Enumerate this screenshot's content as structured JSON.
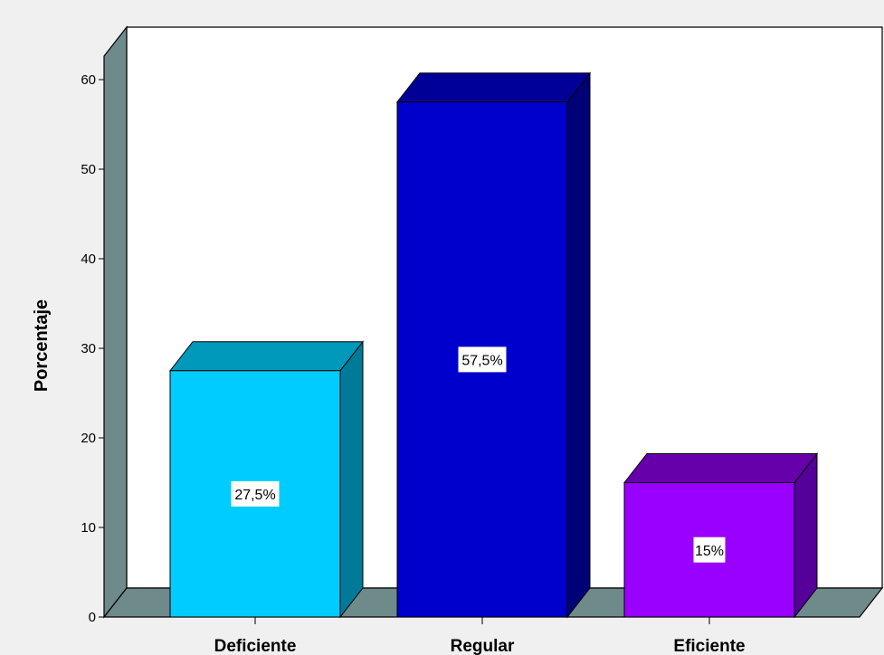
{
  "chart_data": {
    "type": "bar",
    "categories": [
      "Deficiente",
      "Regular",
      "Eficiente"
    ],
    "values": [
      27.5,
      57.5,
      15
    ],
    "data_labels": [
      "27,5%",
      "57,5%",
      "15%"
    ],
    "ylabel": "Porcentaje",
    "xlabel": "",
    "ylim": [
      0,
      60
    ],
    "yticks": [
      0,
      10,
      20,
      30,
      40,
      50,
      60
    ],
    "grid": false,
    "style": "3d",
    "colors": [
      {
        "front": "#00ccff",
        "top": "#0099bb",
        "side": "#007a99"
      },
      {
        "front": "#0000cc",
        "top": "#000099",
        "side": "#000077"
      },
      {
        "front": "#9900ff",
        "top": "#6600aa",
        "side": "#550099"
      }
    ],
    "wall_color": "#ffffff",
    "floor_color": "#6f8a8a"
  }
}
